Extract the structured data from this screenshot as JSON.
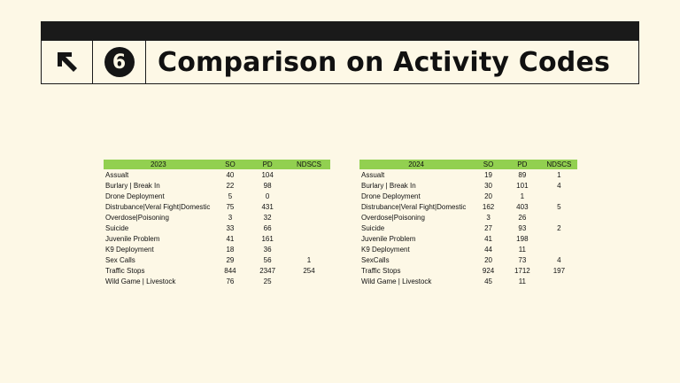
{
  "header": {
    "section_number": "6",
    "title": "Comparison on Activity Codes"
  },
  "tables": [
    {
      "year": "2023",
      "columns": [
        "SO",
        "PD",
        "NDSCS"
      ],
      "rows": [
        {
          "label": "Assualt",
          "so": "40",
          "pd": "104",
          "ndscs": ""
        },
        {
          "label": "Burlary | Break In",
          "so": "22",
          "pd": "98",
          "ndscs": ""
        },
        {
          "label": "Drone Deployment",
          "so": "5",
          "pd": "0",
          "ndscs": ""
        },
        {
          "label": "Distrubance|Veral Fight|Domestic",
          "so": "75",
          "pd": "431",
          "ndscs": ""
        },
        {
          "label": "Overdose|Poisoning",
          "so": "3",
          "pd": "32",
          "ndscs": ""
        },
        {
          "label": "Suicide",
          "so": "33",
          "pd": "66",
          "ndscs": ""
        },
        {
          "label": "Juvenile Problem",
          "so": "41",
          "pd": "161",
          "ndscs": ""
        },
        {
          "label": "K9 Deployment",
          "so": "18",
          "pd": "36",
          "ndscs": ""
        },
        {
          "label": "Sex Calls",
          "so": "29",
          "pd": "56",
          "ndscs": "1"
        },
        {
          "label": "Traffic Stops",
          "so": "844",
          "pd": "2347",
          "ndscs": "254"
        },
        {
          "label": "Wild Game | Livestock",
          "so": "76",
          "pd": "25",
          "ndscs": ""
        }
      ]
    },
    {
      "year": "2024",
      "columns": [
        "SO",
        "PD",
        "NDSCS"
      ],
      "rows": [
        {
          "label": "Assualt",
          "so": "19",
          "pd": "89",
          "ndscs": "1"
        },
        {
          "label": "Burlary | Break In",
          "so": "30",
          "pd": "101",
          "ndscs": "4"
        },
        {
          "label": "Drone Deployment",
          "so": "20",
          "pd": "1",
          "ndscs": ""
        },
        {
          "label": "Distrubance|Veral Fight|Domestic",
          "so": "162",
          "pd": "403",
          "ndscs": "5"
        },
        {
          "label": "Overdose|Poisoning",
          "so": "3",
          "pd": "26",
          "ndscs": ""
        },
        {
          "label": "Suicide",
          "so": "27",
          "pd": "93",
          "ndscs": "2"
        },
        {
          "label": "Juvenile Problem",
          "so": "41",
          "pd": "198",
          "ndscs": ""
        },
        {
          "label": "K9 Deployment",
          "so": "44",
          "pd": "11",
          "ndscs": ""
        },
        {
          "label": "SexCalls",
          "so": "20",
          "pd": "73",
          "ndscs": "4"
        },
        {
          "label": "Traffic Stops",
          "so": "924",
          "pd": "1712",
          "ndscs": "197"
        },
        {
          "label": "Wild Game | Livestock",
          "so": "45",
          "pd": "11",
          "ndscs": ""
        }
      ]
    }
  ]
}
